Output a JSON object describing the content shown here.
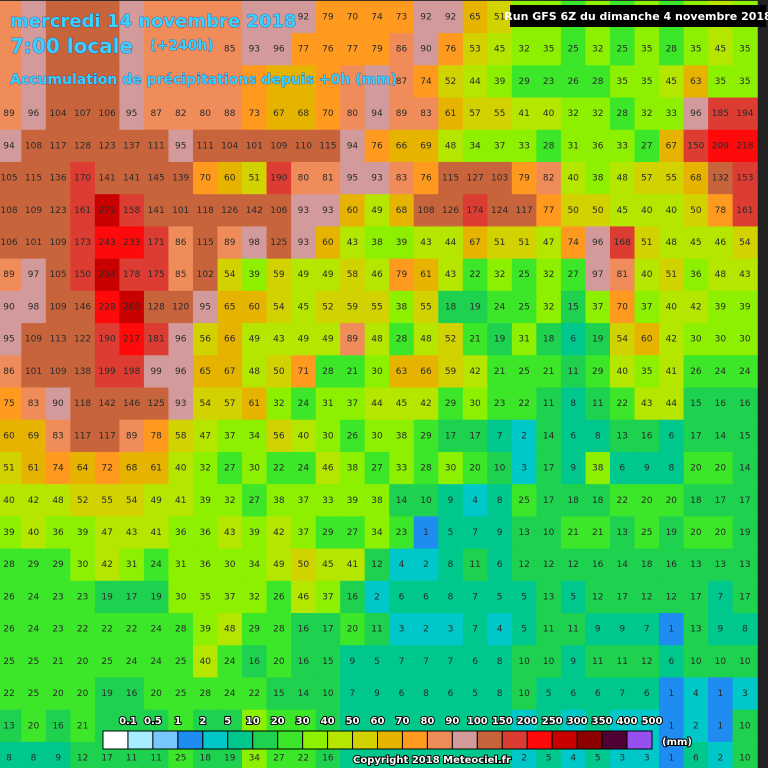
{
  "header": {
    "title": "mercredi 14 novembre 2018",
    "time": "7:00 locale",
    "lead": "(+240h)",
    "subtitle": "Accumulation de précipitations depuis +0h (mm)",
    "run": "Run GFS 6Z du dimanche 4 novembre 2018"
  },
  "grid": {
    "rows": [
      [
        null,
        null,
        null,
        null,
        null,
        null,
        null,
        null,
        null,
        null,
        null,
        null,
        92,
        79,
        70,
        74,
        73,
        92,
        92,
        65,
        51,
        null,
        null,
        null,
        null,
        null,
        null,
        null,
        null,
        null,
        null
      ],
      [
        null,
        null,
        null,
        null,
        null,
        null,
        null,
        null,
        null,
        85,
        93,
        96,
        77,
        76,
        77,
        79,
        86,
        90,
        76,
        53,
        45,
        32,
        35,
        25,
        32,
        25,
        35,
        28,
        35,
        45,
        35
      ],
      [
        null,
        null,
        null,
        null,
        null,
        null,
        null,
        null,
        null,
        null,
        null,
        null,
        null,
        null,
        null,
        null,
        87,
        74,
        52,
        44,
        39,
        29,
        23,
        26,
        28,
        35,
        35,
        45,
        63,
        35,
        35
      ],
      [
        89,
        96,
        104,
        107,
        106,
        95,
        87,
        82,
        80,
        88,
        73,
        67,
        68,
        70,
        80,
        94,
        89,
        83,
        61,
        57,
        55,
        41,
        40,
        32,
        32,
        28,
        32,
        33,
        96,
        185,
        194
      ],
      [
        94,
        108,
        117,
        128,
        123,
        137,
        111,
        95,
        111,
        104,
        101,
        109,
        110,
        115,
        94,
        76,
        66,
        69,
        48,
        34,
        37,
        33,
        28,
        31,
        36,
        33,
        27,
        67,
        150,
        209,
        218
      ],
      [
        105,
        115,
        136,
        170,
        141,
        141,
        145,
        139,
        70,
        60,
        51,
        190,
        80,
        81,
        95,
        93,
        83,
        76,
        115,
        127,
        103,
        79,
        82,
        40,
        38,
        48,
        57,
        55,
        68,
        132,
        153
      ],
      [
        108,
        109,
        123,
        161,
        271,
        158,
        141,
        101,
        118,
        126,
        142,
        106,
        93,
        93,
        60,
        49,
        68,
        108,
        126,
        174,
        124,
        117,
        77,
        50,
        50,
        45,
        40,
        40,
        50,
        78,
        161
      ],
      [
        106,
        101,
        109,
        173,
        243,
        233,
        171,
        86,
        115,
        89,
        98,
        125,
        93,
        60,
        43,
        38,
        39,
        43,
        44,
        67,
        51,
        51,
        47,
        74,
        96,
        168,
        51,
        48,
        45,
        46,
        54
      ],
      [
        89,
        97,
        105,
        150,
        254,
        178,
        175,
        85,
        102,
        54,
        39,
        59,
        49,
        49,
        58,
        46,
        79,
        61,
        43,
        22,
        32,
        25,
        32,
        27,
        97,
        81,
        40,
        51,
        36,
        48,
        43
      ],
      [
        90,
        98,
        109,
        146,
        228,
        260,
        128,
        120,
        95,
        65,
        60,
        54,
        45,
        52,
        59,
        55,
        38,
        55,
        18,
        19,
        24,
        25,
        32,
        15,
        37,
        70,
        37,
        40,
        42,
        39,
        39
      ],
      [
        95,
        109,
        113,
        122,
        190,
        217,
        181,
        96,
        56,
        66,
        49,
        43,
        49,
        49,
        89,
        48,
        28,
        48,
        52,
        21,
        19,
        31,
        18,
        6,
        19,
        54,
        60,
        42,
        30,
        30,
        30
      ],
      [
        86,
        101,
        109,
        138,
        199,
        198,
        99,
        96,
        65,
        67,
        48,
        50,
        71,
        28,
        21,
        30,
        63,
        66,
        59,
        42,
        21,
        25,
        21,
        11,
        29,
        40,
        35,
        41,
        26,
        24,
        24
      ],
      [
        75,
        83,
        90,
        118,
        142,
        146,
        125,
        93,
        54,
        57,
        61,
        32,
        24,
        31,
        37,
        44,
        45,
        42,
        29,
        30,
        23,
        22,
        11,
        8,
        11,
        22,
        43,
        44,
        15,
        16,
        16
      ],
      [
        60,
        69,
        83,
        117,
        117,
        89,
        78,
        58,
        47,
        37,
        34,
        56,
        40,
        30,
        26,
        30,
        38,
        29,
        17,
        17,
        7,
        2,
        14,
        6,
        8,
        13,
        16,
        6,
        17,
        14,
        15
      ],
      [
        51,
        61,
        74,
        64,
        72,
        68,
        61,
        40,
        32,
        27,
        30,
        22,
        24,
        46,
        38,
        27,
        33,
        28,
        30,
        20,
        10,
        3,
        17,
        9,
        38,
        6,
        9,
        8,
        20,
        20,
        14
      ],
      [
        40,
        42,
        48,
        52,
        55,
        54,
        49,
        41,
        39,
        32,
        27,
        38,
        37,
        33,
        39,
        38,
        14,
        10,
        9,
        4,
        8,
        25,
        17,
        18,
        18,
        22,
        20,
        20,
        18,
        17,
        17
      ],
      [
        39,
        40,
        36,
        39,
        47,
        43,
        41,
        36,
        36,
        43,
        39,
        42,
        37,
        29,
        27,
        34,
        23,
        1,
        5,
        7,
        9,
        13,
        10,
        21,
        21,
        13,
        25,
        19,
        20,
        20,
        19
      ],
      [
        28,
        29,
        29,
        30,
        42,
        31,
        24,
        31,
        36,
        30,
        34,
        49,
        50,
        45,
        41,
        12,
        4,
        2,
        8,
        11,
        6,
        12,
        12,
        12,
        16,
        14,
        18,
        16,
        13,
        13,
        13
      ],
      [
        26,
        24,
        23,
        23,
        19,
        17,
        19,
        30,
        35,
        37,
        32,
        26,
        46,
        37,
        16,
        2,
        6,
        6,
        8,
        7,
        5,
        5,
        13,
        5,
        12,
        17,
        12,
        12,
        17,
        7,
        17
      ],
      [
        26,
        24,
        23,
        22,
        22,
        22,
        24,
        28,
        39,
        48,
        29,
        28,
        16,
        17,
        20,
        11,
        3,
        2,
        3,
        7,
        4,
        5,
        11,
        11,
        9,
        9,
        7,
        1,
        13,
        9,
        8
      ],
      [
        25,
        25,
        21,
        20,
        25,
        24,
        24,
        25,
        40,
        24,
        16,
        20,
        16,
        15,
        9,
        5,
        7,
        7,
        7,
        6,
        8,
        10,
        10,
        9,
        11,
        11,
        12,
        6,
        10,
        10,
        10
      ],
      [
        22,
        25,
        20,
        20,
        19,
        16,
        20,
        25,
        28,
        24,
        22,
        15,
        14,
        10,
        7,
        9,
        6,
        8,
        6,
        5,
        8,
        10,
        5,
        6,
        6,
        7,
        6,
        1,
        4,
        1,
        3
      ],
      [
        13,
        20,
        16,
        21,
        null,
        null,
        null,
        null,
        null,
        null,
        null,
        null,
        null,
        null,
        null,
        null,
        null,
        null,
        null,
        null,
        null,
        null,
        null,
        null,
        null,
        null,
        null,
        1,
        2,
        1,
        10
      ],
      [
        8,
        8,
        9,
        12,
        17,
        11,
        11,
        25,
        18,
        19,
        34,
        27,
        22,
        16,
        null,
        null,
        null,
        null,
        null,
        null,
        null,
        2,
        5,
        4,
        5,
        3,
        3,
        1,
        6,
        2,
        10
      ]
    ]
  },
  "legend": {
    "thresholds": [
      0.1,
      0.5,
      1,
      2,
      5,
      10,
      20,
      30,
      40,
      50,
      60,
      70,
      80,
      90,
      100,
      150,
      200,
      250,
      300,
      350,
      400,
      500
    ],
    "colors": [
      "#ffffff",
      "#a8ecff",
      "#78c8ff",
      "#1e8cf0",
      "#00c8c8",
      "#00c88c",
      "#1ed250",
      "#3ce628",
      "#8cf000",
      "#b4e600",
      "#d2d200",
      "#e6b400",
      "#ff9a1e",
      "#f08c5a",
      "#d29a9a",
      "#c8643c",
      "#dc3c32",
      "#ff0a0a",
      "#c80000",
      "#8c0000",
      "#500032",
      "#9650f0"
    ],
    "unit": "(mm)"
  },
  "copyright": "Copyright 2018 Meteociel.fr"
}
